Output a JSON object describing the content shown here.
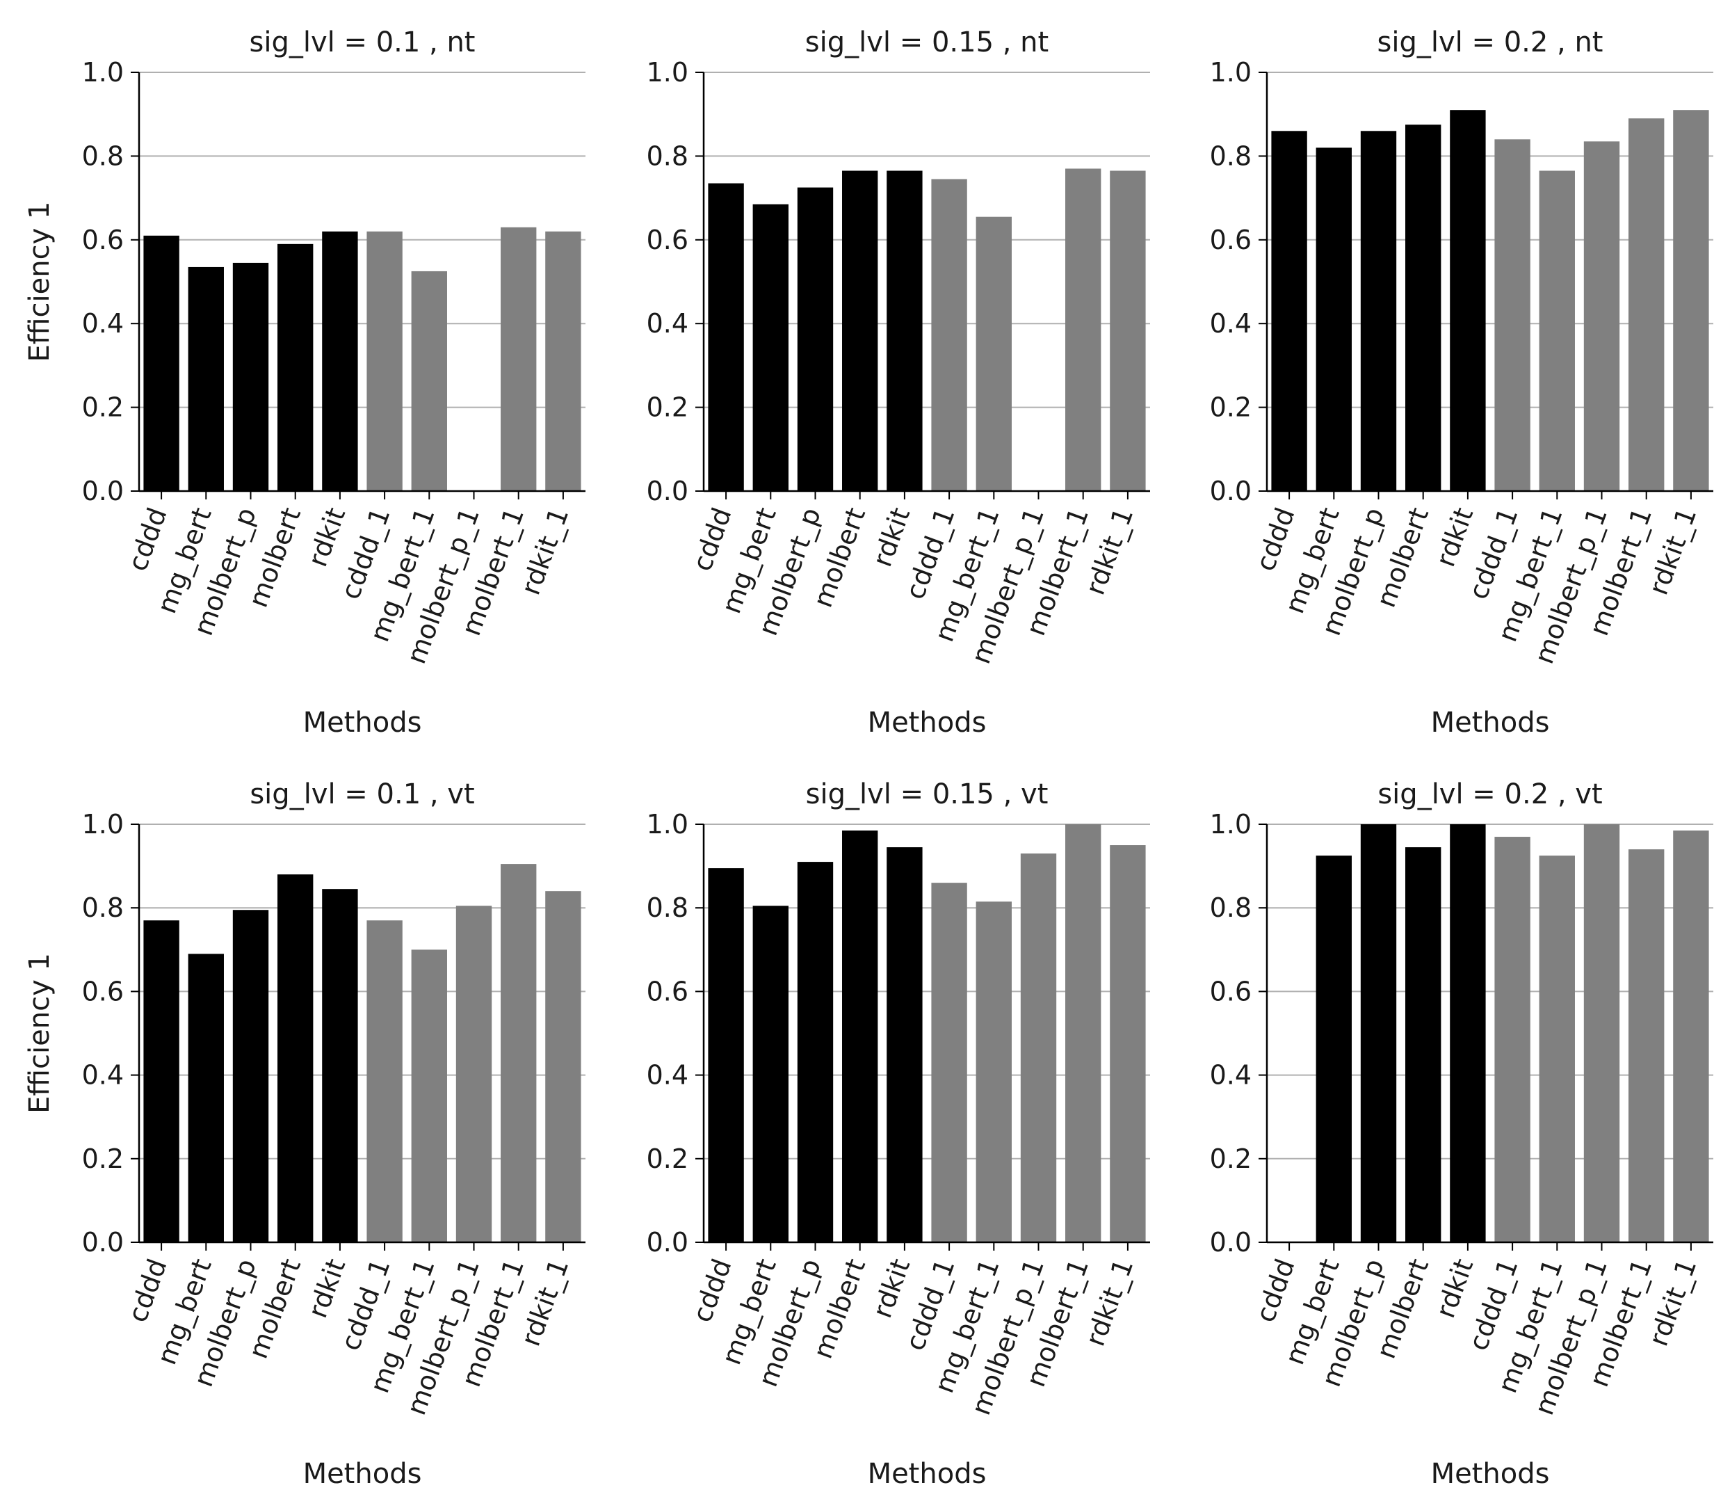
{
  "chart_data": [
    {
      "type": "bar",
      "title": "sig_lvl = 0.1 , nt",
      "xlabel": "Methods",
      "ylabel": "Efficiency 1",
      "ylim": [
        0,
        1.0
      ],
      "yticks": [
        "0.0",
        "0.2",
        "0.4",
        "0.6",
        "0.8",
        "1.0"
      ],
      "grid": "horizontal",
      "categories": [
        "cddd",
        "mg_bert",
        "molbert_p",
        "molbert",
        "rdkit",
        "cddd_1",
        "mg_bert_1",
        "molbert_p_1",
        "molbert_1",
        "rdkit_1"
      ],
      "values": [
        0.61,
        0.535,
        0.545,
        0.59,
        0.62,
        0.62,
        0.525,
        0.0,
        0.63,
        0.62
      ],
      "colors": [
        "#000000",
        "#000000",
        "#000000",
        "#000000",
        "#000000",
        "#808080",
        "#808080",
        "#808080",
        "#808080",
        "#808080"
      ]
    },
    {
      "type": "bar",
      "title": "sig_lvl = 0.15 , nt",
      "xlabel": "Methods",
      "ylabel": "",
      "ylim": [
        0,
        1.0
      ],
      "yticks": [
        "0.0",
        "0.2",
        "0.4",
        "0.6",
        "0.8",
        "1.0"
      ],
      "grid": "horizontal",
      "categories": [
        "cddd",
        "mg_bert",
        "molbert_p",
        "molbert",
        "rdkit",
        "cddd_1",
        "mg_bert_1",
        "molbert_p_1",
        "molbert_1",
        "rdkit_1"
      ],
      "values": [
        0.735,
        0.685,
        0.725,
        0.765,
        0.765,
        0.745,
        0.655,
        0.0,
        0.77,
        0.765
      ],
      "colors": [
        "#000000",
        "#000000",
        "#000000",
        "#000000",
        "#000000",
        "#808080",
        "#808080",
        "#808080",
        "#808080",
        "#808080"
      ]
    },
    {
      "type": "bar",
      "title": "sig_lvl = 0.2 , nt",
      "xlabel": "Methods",
      "ylabel": "",
      "ylim": [
        0,
        1.0
      ],
      "yticks": [
        "0.0",
        "0.2",
        "0.4",
        "0.6",
        "0.8",
        "1.0"
      ],
      "grid": "horizontal",
      "categories": [
        "cddd",
        "mg_bert",
        "molbert_p",
        "molbert",
        "rdkit",
        "cddd_1",
        "mg_bert_1",
        "molbert_p_1",
        "molbert_1",
        "rdkit_1"
      ],
      "values": [
        0.86,
        0.82,
        0.86,
        0.875,
        0.91,
        0.84,
        0.765,
        0.835,
        0.89,
        0.91
      ],
      "colors": [
        "#000000",
        "#000000",
        "#000000",
        "#000000",
        "#000000",
        "#808080",
        "#808080",
        "#808080",
        "#808080",
        "#808080"
      ]
    },
    {
      "type": "bar",
      "title": "sig_lvl = 0.1 , vt",
      "xlabel": "Methods",
      "ylabel": "Efficiency 1",
      "ylim": [
        0,
        1.0
      ],
      "yticks": [
        "0.0",
        "0.2",
        "0.4",
        "0.6",
        "0.8",
        "1.0"
      ],
      "grid": "horizontal",
      "categories": [
        "cddd",
        "mg_bert",
        "molbert_p",
        "molbert",
        "rdkit",
        "cddd_1",
        "mg_bert_1",
        "molbert_p_1",
        "molbert_1",
        "rdkit_1"
      ],
      "values": [
        0.77,
        0.69,
        0.795,
        0.88,
        0.845,
        0.77,
        0.7,
        0.805,
        0.905,
        0.84
      ],
      "colors": [
        "#000000",
        "#000000",
        "#000000",
        "#000000",
        "#000000",
        "#808080",
        "#808080",
        "#808080",
        "#808080",
        "#808080"
      ]
    },
    {
      "type": "bar",
      "title": "sig_lvl = 0.15 , vt",
      "xlabel": "Methods",
      "ylabel": "",
      "ylim": [
        0,
        1.0
      ],
      "yticks": [
        "0.0",
        "0.2",
        "0.4",
        "0.6",
        "0.8",
        "1.0"
      ],
      "grid": "horizontal",
      "categories": [
        "cddd",
        "mg_bert",
        "molbert_p",
        "molbert",
        "rdkit",
        "cddd_1",
        "mg_bert_1",
        "molbert_p_1",
        "molbert_1",
        "rdkit_1"
      ],
      "values": [
        0.895,
        0.805,
        0.91,
        0.985,
        0.945,
        0.86,
        0.815,
        0.93,
        1.0,
        0.95
      ],
      "colors": [
        "#000000",
        "#000000",
        "#000000",
        "#000000",
        "#000000",
        "#808080",
        "#808080",
        "#808080",
        "#808080",
        "#808080"
      ]
    },
    {
      "type": "bar",
      "title": "sig_lvl = 0.2 , vt",
      "xlabel": "Methods",
      "ylabel": "",
      "ylim": [
        0,
        1.0
      ],
      "yticks": [
        "0.0",
        "0.2",
        "0.4",
        "0.6",
        "0.8",
        "1.0"
      ],
      "grid": "horizontal",
      "categories": [
        "cddd",
        "mg_bert",
        "molbert_p",
        "molbert",
        "rdkit",
        "cddd_1",
        "mg_bert_1",
        "molbert_p_1",
        "molbert_1",
        "rdkit_1"
      ],
      "values": [
        0.0,
        0.925,
        1.0,
        0.945,
        1.0,
        0.97,
        0.925,
        1.0,
        0.94,
        0.985
      ],
      "colors": [
        "#000000",
        "#000000",
        "#000000",
        "#000000",
        "#000000",
        "#808080",
        "#808080",
        "#808080",
        "#808080",
        "#808080"
      ]
    }
  ]
}
